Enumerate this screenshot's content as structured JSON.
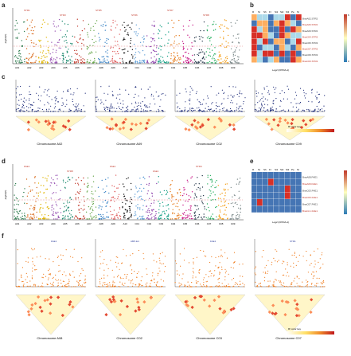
{
  "panel_labels": {
    "a": "a",
    "b": "b",
    "c": "c",
    "d": "d",
    "e": "e",
    "f": "f"
  },
  "panel_a": {
    "ylabel": "-log10(P)",
    "chrom_labels": [
      "A01",
      "A02",
      "A03",
      "A04",
      "A05",
      "A06",
      "A07",
      "A08",
      "A09",
      "A10",
      "C01",
      "C02",
      "C03",
      "C04",
      "C05",
      "C06",
      "C07",
      "C08",
      "C09"
    ],
    "gene_tags": [
      "STR1",
      "STR3",
      "STR5",
      "STR6",
      "STR7",
      "STR8"
    ]
  },
  "panel_b": {
    "col_labels": [
      "R",
      "St",
      "Sh",
      "Fl",
      "Si1",
      "Si2",
      "Si3",
      "Pe",
      "Sl"
    ],
    "row_genes": [
      "BnaA02.STR2",
      "BnaA06.STR2",
      "BnaA09.STR2",
      "BnaC04.STR2",
      "BnaC06.STR2",
      "BnaC07.STR2",
      "BnaC09.STR2",
      "BnaC03.STR2"
    ],
    "xlabel": "Log2 (FPKM+1)",
    "scale_max": "6",
    "scale_min": "0"
  },
  "panel_c": {
    "ylabel": "-log10(P)",
    "sub": [
      {
        "chrom": "Chromosome A02"
      },
      {
        "chrom": "Chromosome A09"
      },
      {
        "chrom": "Chromosome C02"
      },
      {
        "chrom": "Chromosome C09"
      }
    ],
    "legend_title": "R² color key",
    "legend_ticks": [
      "0",
      "0.2",
      "0.4",
      "0.6",
      "0.8",
      "1"
    ]
  },
  "panel_d": {
    "ylabel": "-log10(P)",
    "chrom_labels": [
      "A01",
      "A02",
      "A03",
      "A04",
      "A05",
      "A06",
      "A07",
      "A08",
      "A09",
      "A10",
      "C01",
      "C02",
      "C03",
      "C04",
      "C05",
      "C06",
      "C07",
      "C08",
      "C09"
    ],
    "gene_tags": [
      "FAE1",
      "STR8",
      "FAE1",
      "FAE1",
      "STR4"
    ]
  },
  "panel_e": {
    "col_labels": [
      "R",
      "St",
      "Sh",
      "Fl",
      "Si1",
      "Si2",
      "Si3",
      "Pe",
      "Sl"
    ],
    "row_genes": [
      "BnaA08.FAE1",
      "BnaA09.FAE1",
      "BnaC03.FAE1",
      "BnaC03.FAE1",
      "BnaC07.FAE1",
      "BnaCnn.FAE1"
    ],
    "xlabel": "Log2 (FPKM+1)"
  },
  "panel_f": {
    "ylabel": "-log10(P)",
    "sub": [
      {
        "chrom": "Chromosome A08",
        "tag": "FAE1"
      },
      {
        "chrom": "Chromosome C02",
        "tag": "ABP-E4"
      },
      {
        "chrom": "Chromosome C03",
        "tag": "FAE1"
      },
      {
        "chrom": "Chromosome C07",
        "tag": "STR1"
      }
    ],
    "legend_title": "R² color key",
    "legend_ticks": [
      "0",
      "0.2",
      "0.4",
      "0.6",
      "0.8",
      "1"
    ]
  },
  "colors": {
    "manhattan_palette": [
      "#2e7d4f",
      "#d96b1e",
      "#e0b400",
      "#9b59b6",
      "#1f8a70",
      "#c0392b",
      "#6aa84f",
      "#3d85c6",
      "#e06666",
      "#111111",
      "#5b9bd5",
      "#8e44ad",
      "#16a085",
      "#e67e22",
      "#c71585",
      "#2c3e50",
      "#27ae60",
      "#f39c12",
      "#7f8c8d"
    ],
    "navy": "#1c2a78",
    "orange": "#f07a1a",
    "heat_high": "#c0392b",
    "heat_low": "#2c7bb6"
  }
}
